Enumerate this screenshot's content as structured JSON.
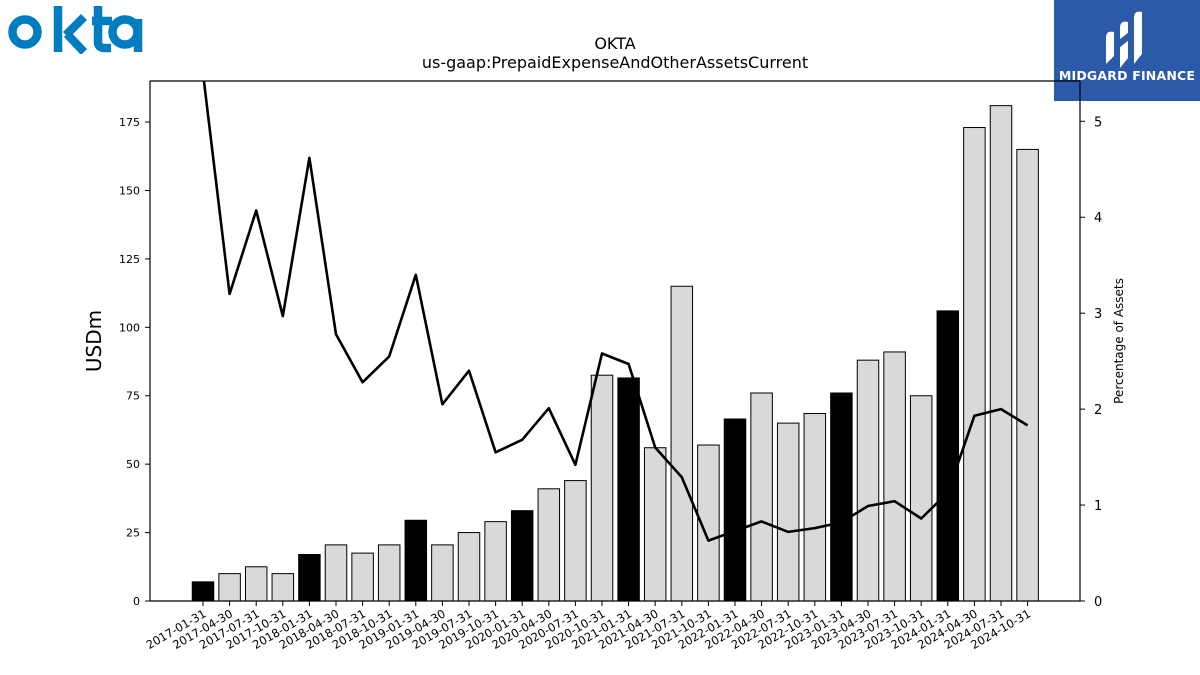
{
  "brand": {
    "company_logo_text": "okta",
    "company_logo_color": "#007dc1",
    "publisher_name": "MIDGARD FINANCE",
    "publisher_bg_color": "#2b5aa9"
  },
  "chart_data": {
    "type": "bar",
    "title": "OKTA",
    "subtitle": "us-gaap:PrepaidExpenseAndOtherAssetsCurrent",
    "ylabel": "USDm",
    "y2label": "Percentage of Assets",
    "ylim": [
      0,
      190
    ],
    "y2lim": [
      0,
      5.42
    ],
    "yticks": [
      "0",
      "25",
      "50",
      "75",
      "100",
      "125",
      "150",
      "175"
    ],
    "y2ticks": [
      "0",
      "1",
      "2",
      "3",
      "4",
      "5"
    ],
    "categories": [
      "2017-01-31",
      "2017-04-30",
      "2017-07-31",
      "2017-10-31",
      "2018-01-31",
      "2018-04-30",
      "2018-07-31",
      "2018-10-31",
      "2019-01-31",
      "2019-04-30",
      "2019-07-31",
      "2019-10-31",
      "2020-01-31",
      "2020-04-30",
      "2020-07-31",
      "2020-10-31",
      "2021-01-31",
      "2021-04-30",
      "2021-07-31",
      "2021-10-31",
      "2022-01-31",
      "2022-04-30",
      "2022-07-31",
      "2022-10-31",
      "2023-01-31",
      "2023-04-30",
      "2023-07-31",
      "2023-10-31",
      "2024-01-31",
      "2024-04-30",
      "2024-07-31",
      "2024-10-31"
    ],
    "series": [
      {
        "kind": "bar",
        "values": [
          7,
          10,
          12.5,
          10,
          17,
          20.5,
          17.5,
          20.5,
          29.5,
          20.5,
          25,
          29,
          33,
          41,
          44,
          82.5,
          81.5,
          56,
          115,
          57,
          66.5,
          76,
          65,
          68.5,
          76,
          88,
          91,
          75,
          106,
          173,
          181,
          165
        ],
        "color": "#d9d9d9",
        "highlight_color": "#000000",
        "highlight_categories": [
          "2017-01-31",
          "2018-01-31",
          "2019-01-31",
          "2020-01-31",
          "2021-01-31",
          "2022-01-31",
          "2023-01-31",
          "2024-01-31"
        ]
      },
      {
        "kind": "line",
        "axis": "right",
        "values": [
          5.5,
          3.2,
          4.07,
          2.97,
          4.62,
          2.78,
          2.28,
          2.55,
          3.4,
          2.05,
          2.4,
          1.55,
          1.68,
          2.01,
          1.42,
          2.58,
          2.47,
          1.6,
          1.29,
          0.63,
          0.73,
          0.83,
          0.72,
          0.76,
          0.82,
          0.99,
          1.04,
          0.86,
          1.13,
          1.93,
          2.0,
          1.83
        ],
        "color": "#000000"
      }
    ]
  }
}
